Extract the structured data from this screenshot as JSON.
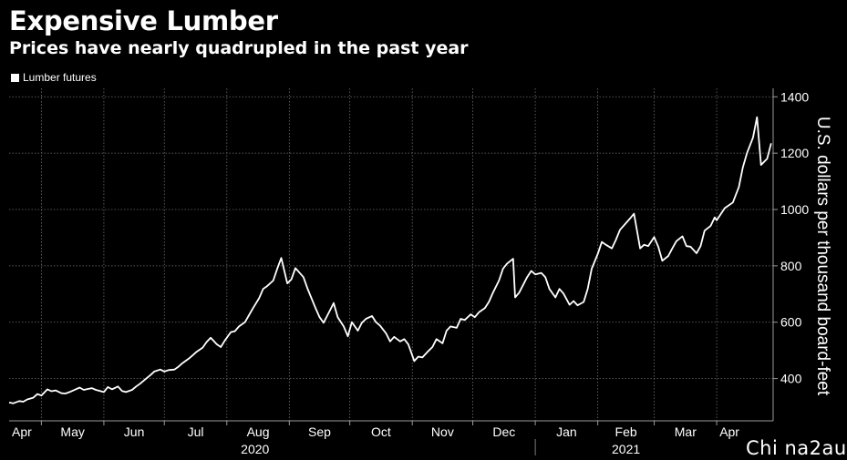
{
  "header": {
    "title": "Expensive Lumber",
    "subtitle": "Prices have nearly quadrupled in the past year",
    "legend_label": "Lumber futures"
  },
  "watermark": "Chi na2au",
  "chart_data": {
    "type": "line",
    "title": "Expensive Lumber",
    "subtitle": "Prices have nearly quadrupled in the past year",
    "ylabel": "U.S. dollars per thousand board-feet",
    "xlabel": "",
    "ylim": [
      250,
      1430
    ],
    "yticks": [
      400,
      600,
      800,
      1000,
      1200,
      1400
    ],
    "xlim": [
      "2020-04-15",
      "2021-04-29"
    ],
    "months": [
      {
        "label": "Apr",
        "date": "2020-04-01"
      },
      {
        "label": "May",
        "date": "2020-05-01"
      },
      {
        "label": "Jun",
        "date": "2020-06-01"
      },
      {
        "label": "Jul",
        "date": "2020-07-01"
      },
      {
        "label": "Aug",
        "date": "2020-08-01"
      },
      {
        "label": "Sep",
        "date": "2020-09-01"
      },
      {
        "label": "Oct",
        "date": "2020-10-01"
      },
      {
        "label": "Nov",
        "date": "2020-11-01"
      },
      {
        "label": "Dec",
        "date": "2020-12-01"
      },
      {
        "label": "Jan",
        "date": "2021-01-01"
      },
      {
        "label": "Feb",
        "date": "2021-02-01"
      },
      {
        "label": "Mar",
        "date": "2021-03-01"
      },
      {
        "label": "Apr",
        "date": "2021-04-01"
      }
    ],
    "years": [
      {
        "label": "2020",
        "date": "2020-08-15"
      },
      {
        "label": "2021",
        "date": "2021-02-15"
      }
    ],
    "year_divider": "2021-01-01",
    "grid": true,
    "legend": "top-left",
    "colors": {
      "background": "#000000",
      "line": "#ffffff",
      "grid": "#6e6e6e",
      "axis": "#9a9a9a"
    },
    "series": [
      {
        "name": "Lumber futures",
        "points": [
          [
            "2020-04-15",
            315
          ],
          [
            "2020-04-17",
            312
          ],
          [
            "2020-04-20",
            320
          ],
          [
            "2020-04-22",
            318
          ],
          [
            "2020-04-24",
            326
          ],
          [
            "2020-04-27",
            332
          ],
          [
            "2020-04-29",
            345
          ],
          [
            "2020-05-01",
            340
          ],
          [
            "2020-05-04",
            362
          ],
          [
            "2020-05-06",
            355
          ],
          [
            "2020-05-08",
            358
          ],
          [
            "2020-05-11",
            348
          ],
          [
            "2020-05-13",
            347
          ],
          [
            "2020-05-15",
            352
          ],
          [
            "2020-05-18",
            362
          ],
          [
            "2020-05-20",
            368
          ],
          [
            "2020-05-22",
            360
          ],
          [
            "2020-05-26",
            366
          ],
          [
            "2020-05-28",
            360
          ],
          [
            "2020-06-01",
            352
          ],
          [
            "2020-06-03",
            370
          ],
          [
            "2020-06-05",
            362
          ],
          [
            "2020-06-08",
            372
          ],
          [
            "2020-06-10",
            356
          ],
          [
            "2020-06-12",
            352
          ],
          [
            "2020-06-15",
            360
          ],
          [
            "2020-06-17",
            372
          ],
          [
            "2020-06-19",
            382
          ],
          [
            "2020-06-22",
            400
          ],
          [
            "2020-06-24",
            412
          ],
          [
            "2020-06-26",
            425
          ],
          [
            "2020-06-29",
            432
          ],
          [
            "2020-07-01",
            425
          ],
          [
            "2020-07-03",
            430
          ],
          [
            "2020-07-06",
            432
          ],
          [
            "2020-07-08",
            442
          ],
          [
            "2020-07-10",
            455
          ],
          [
            "2020-07-13",
            470
          ],
          [
            "2020-07-15",
            482
          ],
          [
            "2020-07-17",
            495
          ],
          [
            "2020-07-20",
            510
          ],
          [
            "2020-07-22",
            530
          ],
          [
            "2020-07-24",
            545
          ],
          [
            "2020-07-27",
            522
          ],
          [
            "2020-07-29",
            512
          ],
          [
            "2020-07-31",
            535
          ],
          [
            "2020-08-03",
            565
          ],
          [
            "2020-08-05",
            568
          ],
          [
            "2020-08-07",
            585
          ],
          [
            "2020-08-10",
            600
          ],
          [
            "2020-08-12",
            625
          ],
          [
            "2020-08-14",
            650
          ],
          [
            "2020-08-17",
            685
          ],
          [
            "2020-08-19",
            718
          ],
          [
            "2020-08-21",
            728
          ],
          [
            "2020-08-24",
            748
          ],
          [
            "2020-08-26",
            790
          ],
          [
            "2020-08-28",
            828
          ],
          [
            "2020-08-31",
            738
          ],
          [
            "2020-09-02",
            752
          ],
          [
            "2020-09-04",
            792
          ],
          [
            "2020-09-08",
            760
          ],
          [
            "2020-09-10",
            720
          ],
          [
            "2020-09-14",
            650
          ],
          [
            "2020-09-16",
            618
          ],
          [
            "2020-09-18",
            598
          ],
          [
            "2020-09-21",
            640
          ],
          [
            "2020-09-23",
            668
          ],
          [
            "2020-09-25",
            618
          ],
          [
            "2020-09-28",
            585
          ],
          [
            "2020-09-30",
            550
          ],
          [
            "2020-10-02",
            600
          ],
          [
            "2020-10-05",
            570
          ],
          [
            "2020-10-07",
            598
          ],
          [
            "2020-10-09",
            612
          ],
          [
            "2020-10-12",
            622
          ],
          [
            "2020-10-14",
            600
          ],
          [
            "2020-10-16",
            588
          ],
          [
            "2020-10-19",
            560
          ],
          [
            "2020-10-21",
            532
          ],
          [
            "2020-10-23",
            548
          ],
          [
            "2020-10-26",
            532
          ],
          [
            "2020-10-28",
            540
          ],
          [
            "2020-10-30",
            522
          ],
          [
            "2020-11-02",
            462
          ],
          [
            "2020-11-04",
            478
          ],
          [
            "2020-11-06",
            475
          ],
          [
            "2020-11-09",
            498
          ],
          [
            "2020-11-11",
            512
          ],
          [
            "2020-11-13",
            540
          ],
          [
            "2020-11-16",
            525
          ],
          [
            "2020-11-18",
            570
          ],
          [
            "2020-11-20",
            585
          ],
          [
            "2020-11-23",
            580
          ],
          [
            "2020-11-25",
            612
          ],
          [
            "2020-11-27",
            608
          ],
          [
            "2020-11-30",
            628
          ],
          [
            "2020-12-02",
            618
          ],
          [
            "2020-12-04",
            635
          ],
          [
            "2020-12-07",
            650
          ],
          [
            "2020-12-09",
            672
          ],
          [
            "2020-12-11",
            705
          ],
          [
            "2020-12-14",
            748
          ],
          [
            "2020-12-16",
            790
          ],
          [
            "2020-12-18",
            808
          ],
          [
            "2020-12-21",
            825
          ],
          [
            "2020-12-22",
            688
          ],
          [
            "2020-12-24",
            705
          ],
          [
            "2020-12-28",
            760
          ],
          [
            "2020-12-30",
            782
          ],
          [
            "2021-01-01",
            770
          ],
          [
            "2021-01-04",
            775
          ],
          [
            "2021-01-06",
            760
          ],
          [
            "2021-01-08",
            718
          ],
          [
            "2021-01-11",
            688
          ],
          [
            "2021-01-13",
            718
          ],
          [
            "2021-01-15",
            702
          ],
          [
            "2021-01-18",
            662
          ],
          [
            "2021-01-20",
            675
          ],
          [
            "2021-01-22",
            660
          ],
          [
            "2021-01-25",
            672
          ],
          [
            "2021-01-27",
            718
          ],
          [
            "2021-01-29",
            790
          ],
          [
            "2021-02-01",
            842
          ],
          [
            "2021-02-03",
            885
          ],
          [
            "2021-02-05",
            875
          ],
          [
            "2021-02-08",
            862
          ],
          [
            "2021-02-10",
            892
          ],
          [
            "2021-02-12",
            928
          ],
          [
            "2021-02-15",
            952
          ],
          [
            "2021-02-17",
            968
          ],
          [
            "2021-02-19",
            985
          ],
          [
            "2021-02-22",
            862
          ],
          [
            "2021-02-24",
            875
          ],
          [
            "2021-02-26",
            870
          ],
          [
            "2021-03-01",
            902
          ],
          [
            "2021-03-03",
            868
          ],
          [
            "2021-03-05",
            818
          ],
          [
            "2021-03-08",
            835
          ],
          [
            "2021-03-10",
            862
          ],
          [
            "2021-03-12",
            888
          ],
          [
            "2021-03-15",
            905
          ],
          [
            "2021-03-17",
            870
          ],
          [
            "2021-03-19",
            868
          ],
          [
            "2021-03-22",
            845
          ],
          [
            "2021-03-24",
            870
          ],
          [
            "2021-03-26",
            925
          ],
          [
            "2021-03-29",
            942
          ],
          [
            "2021-03-31",
            972
          ],
          [
            "2021-04-01",
            962
          ],
          [
            "2021-04-05",
            1005
          ],
          [
            "2021-04-07",
            1015
          ],
          [
            "2021-04-09",
            1025
          ],
          [
            "2021-04-12",
            1080
          ],
          [
            "2021-04-14",
            1150
          ],
          [
            "2021-04-16",
            1200
          ],
          [
            "2021-04-19",
            1255
          ],
          [
            "2021-04-21",
            1328
          ],
          [
            "2021-04-23",
            1158
          ],
          [
            "2021-04-26",
            1180
          ],
          [
            "2021-04-28",
            1235
          ]
        ]
      }
    ]
  }
}
